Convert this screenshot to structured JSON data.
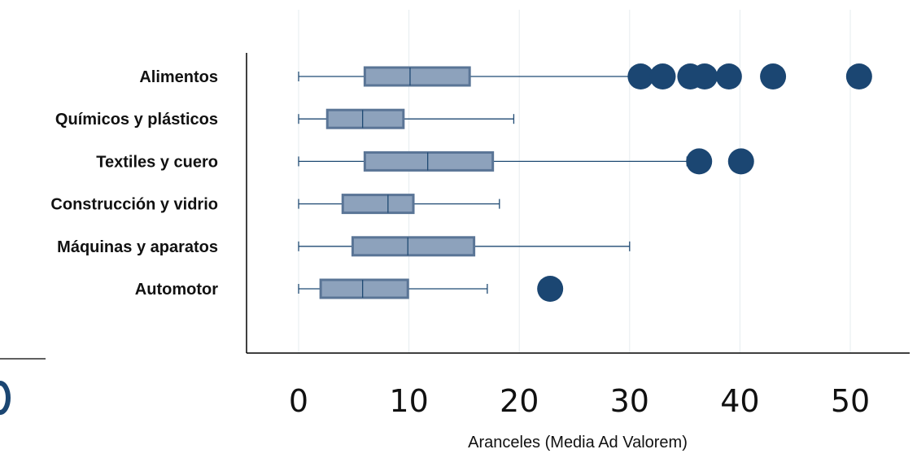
{
  "colors": {
    "box_fill": "#8da2bc",
    "box_stroke": "#5a7596",
    "whisker": "#1f4a73",
    "outlier": "#1b4672",
    "grid": "#e6ecef",
    "axis": "#000000"
  },
  "chart_data": {
    "type": "boxplot",
    "orientation": "horizontal",
    "xlabel": "Aranceles (Media Ad Valorem)",
    "xlim": [
      -4.5,
      55.5
    ],
    "xticks": [
      0,
      10,
      20,
      30,
      40,
      50
    ],
    "grid": true,
    "categories": [
      "Alimentos",
      "Químicos y plásticos",
      "Textiles y cuero",
      "Construcción y vidrio",
      "Máquinas y aparatos",
      "Automotor"
    ],
    "boxes": [
      {
        "min": 0,
        "q1": 6.0,
        "median": 10.1,
        "q3": 15.5,
        "max": 30.0,
        "outliers": [
          31.0,
          33.0,
          35.5,
          36.8,
          39.0,
          43.0,
          50.8
        ]
      },
      {
        "min": 0,
        "q1": 2.6,
        "median": 5.8,
        "q3": 9.5,
        "max": 19.5,
        "outliers": []
      },
      {
        "min": 0,
        "q1": 6.0,
        "median": 11.7,
        "q3": 17.6,
        "max": 35.2,
        "outliers": [
          36.3,
          40.1
        ]
      },
      {
        "min": 0,
        "q1": 4.0,
        "median": 8.1,
        "q3": 10.4,
        "max": 18.2,
        "outliers": []
      },
      {
        "min": 0,
        "q1": 4.9,
        "median": 9.9,
        "q3": 15.9,
        "max": 30.0,
        "outliers": []
      },
      {
        "min": 0,
        "q1": 2.0,
        "median": 5.8,
        "q3": 9.9,
        "max": 17.1,
        "outliers": [
          22.8
        ]
      }
    ]
  }
}
